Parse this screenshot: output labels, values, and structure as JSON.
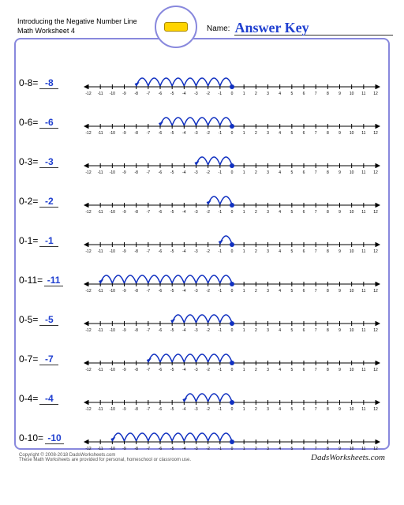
{
  "header": {
    "title_line1": "Introducing the Negative Number Line",
    "title_line2": "Math Worksheet 4",
    "name_label": "Name:",
    "answer_key": "Answer Key"
  },
  "numberline": {
    "min": -12,
    "max": 12,
    "tick_fontsize": 5,
    "axis_color": "#000000",
    "arc_color": "#1030c0",
    "dot_color": "#1030c0",
    "arrowhead_color": "#1030c0",
    "tick_step": 1
  },
  "problems": [
    {
      "lhs": "0-8=",
      "answer": "-8",
      "start": 0,
      "hops": 8
    },
    {
      "lhs": "0-6=",
      "answer": "-6",
      "start": 0,
      "hops": 6
    },
    {
      "lhs": "0-3=",
      "answer": "-3",
      "start": 0,
      "hops": 3
    },
    {
      "lhs": "0-2=",
      "answer": "-2",
      "start": 0,
      "hops": 2
    },
    {
      "lhs": "0-1=",
      "answer": "-1",
      "start": 0,
      "hops": 1
    },
    {
      "lhs": "0-11=",
      "answer": "-11",
      "start": 0,
      "hops": 11
    },
    {
      "lhs": "0-5=",
      "answer": "-5",
      "start": 0,
      "hops": 5
    },
    {
      "lhs": "0-7=",
      "answer": "-7",
      "start": 0,
      "hops": 7
    },
    {
      "lhs": "0-4=",
      "answer": "-4",
      "start": 0,
      "hops": 4
    },
    {
      "lhs": "0-10=",
      "answer": "-10",
      "start": 0,
      "hops": 10
    }
  ],
  "footer": {
    "copyright": "Copyright © 2008-2018 DadsWorksheets.com",
    "note": "These Math Worksheets are provided for personal, homeschool or classroom use.",
    "brand": "DadsWorksheets.com"
  },
  "colors": {
    "border": "#8888dd",
    "answer_text": "#2040d0"
  }
}
